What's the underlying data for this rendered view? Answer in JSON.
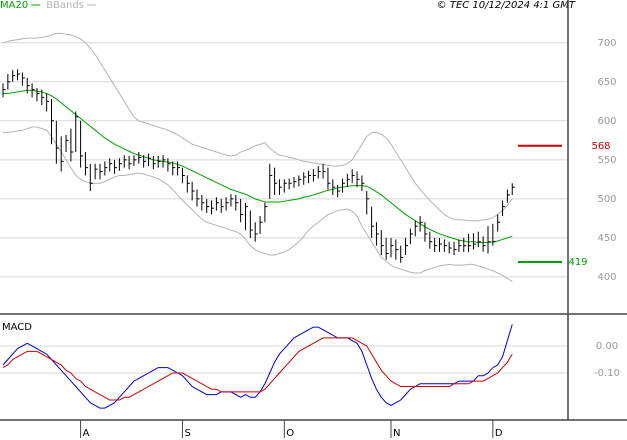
{
  "chart_data": [
    {
      "type": "ohlc",
      "source": "© TEC 10/12/2024 4:1 GMT",
      "bar_color": "#000000",
      "ylim": [
        355,
        742
      ],
      "yticks": [
        400,
        450,
        500,
        550,
        600,
        650,
        700
      ],
      "grid": true,
      "high": [
        648,
        660,
        665,
        666,
        662,
        655,
        648,
        642,
        640,
        635,
        628,
        600,
        580,
        582,
        590,
        612,
        600,
        560,
        545,
        545,
        545,
        548,
        552,
        550,
        552,
        556,
        555,
        556,
        560,
        556,
        558,
        555,
        555,
        556,
        552,
        548,
        548,
        540,
        530,
        522,
        512,
        505,
        500,
        498,
        502,
        500,
        502,
        506,
        505,
        500,
        495,
        485,
        470,
        478,
        495,
        545,
        540,
        525,
        525,
        526,
        528,
        530,
        534,
        536,
        538,
        542,
        545,
        540,
        525,
        518,
        526,
        532,
        538,
        535,
        530,
        510,
        490,
        470,
        460,
        450,
        450,
        448,
        440,
        450,
        462,
        472,
        478,
        470,
        458,
        450,
        450,
        448,
        445,
        445,
        448,
        450,
        455,
        456,
        458,
        452,
        465,
        468,
        480,
        498,
        512,
        520
      ],
      "low": [
        630,
        640,
        650,
        652,
        645,
        635,
        630,
        625,
        620,
        612,
        570,
        545,
        535,
        560,
        548,
        560,
        540,
        530,
        510,
        525,
        525,
        530,
        535,
        532,
        536,
        540,
        538,
        542,
        545,
        540,
        542,
        538,
        540,
        540,
        535,
        530,
        530,
        520,
        508,
        498,
        490,
        485,
        482,
        480,
        485,
        482,
        485,
        490,
        485,
        470,
        460,
        450,
        445,
        455,
        470,
        500,
        505,
        505,
        508,
        512,
        514,
        516,
        518,
        520,
        522,
        526,
        526,
        512,
        505,
        502,
        508,
        515,
        520,
        515,
        510,
        480,
        450,
        440,
        428,
        422,
        425,
        422,
        418,
        428,
        442,
        452,
        458,
        445,
        436,
        432,
        432,
        432,
        430,
        428,
        432,
        432,
        432,
        435,
        438,
        432,
        430,
        440,
        458,
        478,
        495,
        505
      ],
      "close": [
        640,
        650,
        658,
        660,
        655,
        645,
        640,
        635,
        630,
        625,
        600,
        565,
        548,
        575,
        560,
        605,
        555,
        540,
        520,
        538,
        535,
        540,
        545,
        540,
        545,
        550,
        545,
        550,
        553,
        548,
        552,
        545,
        548,
        550,
        545,
        540,
        540,
        530,
        520,
        510,
        500,
        495,
        490,
        488,
        495,
        490,
        495,
        500,
        495,
        480,
        490,
        460,
        455,
        470,
        490,
        530,
        520,
        515,
        520,
        520,
        522,
        525,
        528,
        530,
        530,
        535,
        535,
        520,
        515,
        510,
        520,
        525,
        530,
        525,
        520,
        500,
        465,
        455,
        440,
        430,
        440,
        435,
        425,
        440,
        455,
        465,
        470,
        455,
        445,
        440,
        442,
        440,
        437,
        435,
        440,
        440,
        440,
        442,
        445,
        440,
        445,
        445,
        470,
        490,
        505,
        515
      ],
      "series": [
        {
          "name": "MA20",
          "color": "#00a000",
          "values": [
            635,
            635,
            636,
            637,
            638,
            639,
            639,
            638,
            637,
            635,
            632,
            628,
            623,
            618,
            613,
            608,
            603,
            598,
            593,
            588,
            583,
            578,
            574,
            570,
            567,
            564,
            561,
            558,
            556,
            554,
            552,
            550,
            549,
            548,
            547,
            546,
            544,
            542,
            539,
            536,
            533,
            530,
            527,
            524,
            521,
            518,
            515,
            512,
            510,
            508,
            506,
            503,
            500,
            498,
            496,
            496,
            496,
            496,
            497,
            498,
            499,
            500,
            502,
            503,
            505,
            507,
            509,
            511,
            512,
            514,
            515,
            516,
            517,
            517,
            517,
            516,
            513,
            509,
            505,
            500,
            495,
            490,
            485,
            480,
            476,
            472,
            468,
            464,
            461,
            458,
            455,
            453,
            451,
            449,
            447,
            446,
            445,
            445,
            444,
            444,
            444,
            445,
            446,
            448,
            450,
            452
          ]
        },
        {
          "name": "BBands",
          "color": "#b4b4b4",
          "upper": [
            700,
            702,
            703,
            704,
            705,
            706,
            706,
            706,
            707,
            708,
            710,
            712,
            712,
            711,
            710,
            708,
            705,
            700,
            693,
            685,
            675,
            665,
            655,
            645,
            635,
            625,
            615,
            605,
            600,
            598,
            596,
            594,
            592,
            590,
            588,
            585,
            582,
            578,
            574,
            570,
            568,
            566,
            564,
            562,
            560,
            558,
            556,
            555,
            556,
            560,
            562,
            565,
            568,
            570,
            572,
            565,
            560,
            556,
            555,
            553,
            552,
            550,
            548,
            547,
            546,
            545,
            544,
            543,
            542,
            542,
            543,
            545,
            550,
            560,
            570,
            580,
            585,
            585,
            583,
            578,
            570,
            560,
            550,
            540,
            530,
            520,
            512,
            505,
            498,
            492,
            486,
            480,
            476,
            474,
            473,
            473,
            472,
            472,
            472,
            473,
            474,
            476,
            480,
            485,
            492,
            500
          ],
          "lower": [
            585,
            585,
            586,
            587,
            588,
            590,
            592,
            592,
            590,
            588,
            580,
            570,
            560,
            550,
            540,
            530,
            525,
            522,
            520,
            520,
            520,
            522,
            525,
            528,
            530,
            530,
            531,
            532,
            533,
            532,
            530,
            528,
            526,
            522,
            518,
            512,
            505,
            498,
            492,
            486,
            480,
            474,
            470,
            468,
            466,
            464,
            462,
            460,
            458,
            455,
            448,
            440,
            435,
            432,
            430,
            428,
            428,
            430,
            432,
            435,
            440,
            445,
            452,
            460,
            465,
            470,
            475,
            480,
            482,
            485,
            486,
            487,
            484,
            478,
            465,
            455,
            445,
            435,
            425,
            420,
            415,
            412,
            410,
            408,
            406,
            405,
            405,
            408,
            410,
            412,
            414,
            415,
            416,
            415,
            415,
            415,
            416,
            416,
            414,
            412,
            410,
            408,
            405,
            402,
            398,
            394
          ]
        }
      ],
      "levels": [
        {
          "value": 568,
          "color": "#cc0000"
        },
        {
          "value": 419,
          "color": "#00a000"
        }
      ]
    },
    {
      "type": "line",
      "title": "MACD",
      "categories": [
        null,
        null,
        null,
        null,
        null,
        null,
        null,
        null,
        null,
        null,
        null,
        null,
        null,
        null,
        null,
        null,
        "A",
        null,
        null,
        null,
        null,
        null,
        null,
        null,
        null,
        null,
        null,
        null,
        null,
        null,
        null,
        null,
        null,
        null,
        null,
        null,
        null,
        "S",
        null,
        null,
        null,
        null,
        null,
        null,
        null,
        null,
        null,
        null,
        null,
        null,
        null,
        null,
        null,
        null,
        null,
        null,
        null,
        null,
        "O",
        null,
        null,
        null,
        null,
        null,
        null,
        null,
        null,
        null,
        null,
        null,
        null,
        null,
        null,
        null,
        null,
        null,
        null,
        null,
        null,
        null,
        "N",
        null,
        null,
        null,
        null,
        null,
        null,
        null,
        null,
        null,
        null,
        null,
        null,
        null,
        null,
        null,
        null,
        null,
        null,
        null,
        null,
        "D",
        null,
        null,
        null,
        null
      ],
      "ylim": [
        -0.274,
        0.111
      ],
      "yticks": [
        {
          "value": 0,
          "label": "0.00"
        },
        {
          "value": -0.1,
          "label": "-0.10"
        }
      ],
      "grid": true,
      "series": [
        {
          "color": "#0000cc",
          "values": [
            -0.07,
            -0.05,
            -0.03,
            -0.01,
            0.0,
            0.01,
            0.0,
            -0.01,
            -0.02,
            -0.03,
            -0.05,
            -0.07,
            -0.09,
            -0.11,
            -0.13,
            -0.15,
            -0.17,
            -0.19,
            -0.21,
            -0.22,
            -0.23,
            -0.23,
            -0.22,
            -0.21,
            -0.19,
            -0.17,
            -0.15,
            -0.13,
            -0.12,
            -0.11,
            -0.1,
            -0.09,
            -0.08,
            -0.08,
            -0.08,
            -0.09,
            -0.1,
            -0.11,
            -0.13,
            -0.15,
            -0.16,
            -0.17,
            -0.18,
            -0.18,
            -0.18,
            -0.17,
            -0.17,
            -0.17,
            -0.18,
            -0.19,
            -0.18,
            -0.19,
            -0.19,
            -0.17,
            -0.14,
            -0.1,
            -0.06,
            -0.03,
            -0.01,
            0.01,
            0.03,
            0.04,
            0.05,
            0.06,
            0.07,
            0.07,
            0.06,
            0.05,
            0.04,
            0.03,
            0.03,
            0.03,
            0.02,
            0.01,
            -0.02,
            -0.07,
            -0.12,
            -0.16,
            -0.19,
            -0.21,
            -0.22,
            -0.21,
            -0.2,
            -0.18,
            -0.16,
            -0.15,
            -0.14,
            -0.14,
            -0.14,
            -0.14,
            -0.14,
            -0.14,
            -0.14,
            -0.14,
            -0.13,
            -0.13,
            -0.13,
            -0.13,
            -0.11,
            -0.11,
            -0.1,
            -0.08,
            -0.07,
            -0.04,
            0.02,
            0.08
          ]
        },
        {
          "color": "#cc0000",
          "values": [
            -0.08,
            -0.07,
            -0.05,
            -0.04,
            -0.03,
            -0.02,
            -0.02,
            -0.02,
            -0.03,
            -0.04,
            -0.05,
            -0.06,
            -0.07,
            -0.09,
            -0.1,
            -0.12,
            -0.13,
            -0.15,
            -0.16,
            -0.17,
            -0.18,
            -0.19,
            -0.2,
            -0.2,
            -0.2,
            -0.19,
            -0.19,
            -0.18,
            -0.17,
            -0.16,
            -0.15,
            -0.14,
            -0.13,
            -0.12,
            -0.11,
            -0.1,
            -0.1,
            -0.1,
            -0.11,
            -0.12,
            -0.13,
            -0.14,
            -0.15,
            -0.16,
            -0.16,
            -0.17,
            -0.17,
            -0.17,
            -0.17,
            -0.17,
            -0.17,
            -0.17,
            -0.17,
            -0.17,
            -0.16,
            -0.14,
            -0.12,
            -0.1,
            -0.08,
            -0.06,
            -0.04,
            -0.02,
            -0.01,
            0.0,
            0.01,
            0.02,
            0.03,
            0.03,
            0.03,
            0.03,
            0.03,
            0.03,
            0.03,
            0.02,
            0.01,
            0.0,
            -0.03,
            -0.06,
            -0.09,
            -0.11,
            -0.13,
            -0.14,
            -0.15,
            -0.15,
            -0.15,
            -0.15,
            -0.15,
            -0.15,
            -0.15,
            -0.15,
            -0.15,
            -0.15,
            -0.15,
            -0.14,
            -0.14,
            -0.14,
            -0.14,
            -0.13,
            -0.13,
            -0.13,
            -0.12,
            -0.11,
            -0.1,
            -0.08,
            -0.06,
            -0.03
          ]
        }
      ]
    }
  ]
}
